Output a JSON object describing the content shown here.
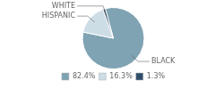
{
  "chart_data": {
    "type": "pie",
    "categories": [
      "BLACK",
      "HISPANIC",
      "WHITE"
    ],
    "values": [
      82.4,
      16.3,
      1.3
    ],
    "value_labels": [
      "82.4%",
      "16.3%",
      "1.3%"
    ],
    "colors": [
      "#7fa3b3",
      "#cddde6",
      "#2e4d6b"
    ],
    "legend": "bottom"
  }
}
